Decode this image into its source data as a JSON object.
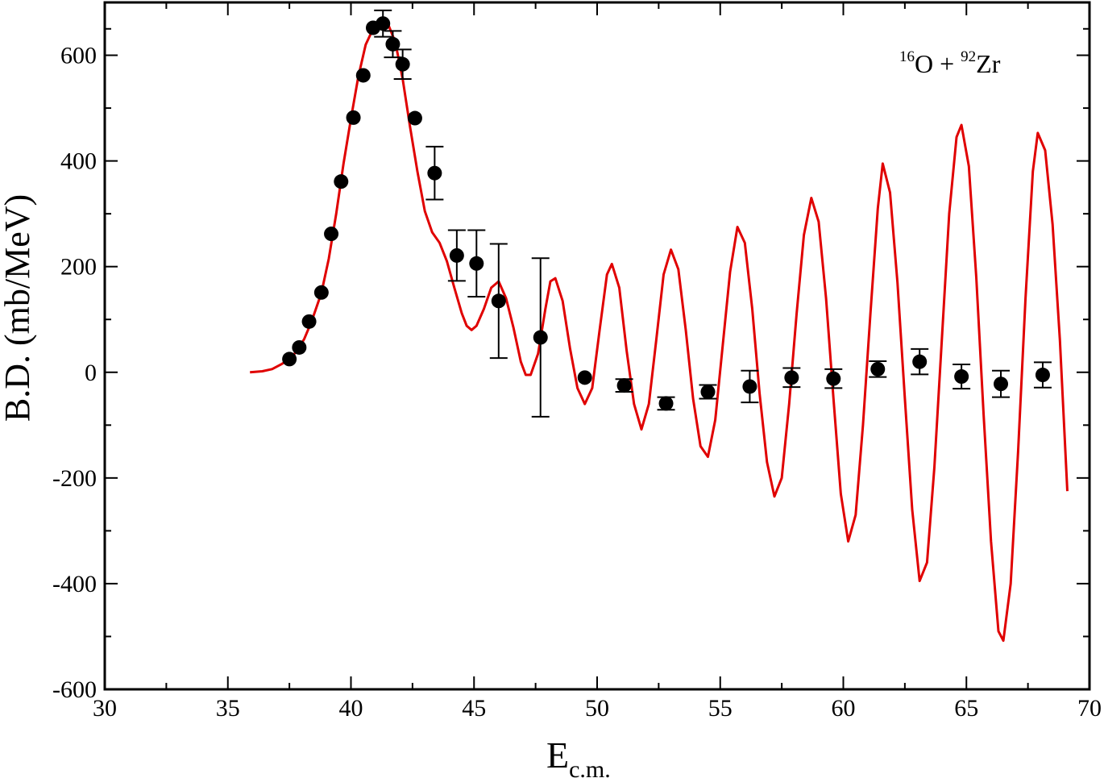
{
  "chart_data": {
    "type": "scatter",
    "title": "",
    "xlabel": "E",
    "xlabel_subscript": "c.m.",
    "ylabel": "B.D. (mb/MeV)",
    "annotation": {
      "left_mass": "16",
      "left_symbol": "O + ",
      "right_mass": "92",
      "right_symbol": "Zr"
    },
    "xlim": [
      30,
      70
    ],
    "ylim": [
      -600,
      700
    ],
    "x_ticks": [
      30,
      35,
      40,
      45,
      50,
      55,
      60,
      65,
      70
    ],
    "x_tick_labels": [
      "30",
      "35",
      "40",
      "45",
      "50",
      "55",
      "60",
      "65",
      "70"
    ],
    "y_ticks": [
      -600,
      -400,
      -200,
      0,
      200,
      400,
      600
    ],
    "y_tick_labels": [
      "-600",
      "-400",
      "-200",
      "0",
      "200",
      "400",
      "600"
    ],
    "grid": false,
    "series": [
      {
        "kind": "points_with_errors",
        "color": "#000000",
        "points": [
          {
            "x": 37.5,
            "y": 25,
            "err": 0
          },
          {
            "x": 37.9,
            "y": 47,
            "err": 0
          },
          {
            "x": 38.3,
            "y": 96,
            "err": 0
          },
          {
            "x": 38.8,
            "y": 151,
            "err": 0
          },
          {
            "x": 39.2,
            "y": 262,
            "err": 0
          },
          {
            "x": 39.6,
            "y": 361,
            "err": 0
          },
          {
            "x": 40.1,
            "y": 482,
            "err": 0
          },
          {
            "x": 40.5,
            "y": 562,
            "err": 0
          },
          {
            "x": 40.9,
            "y": 652,
            "err": 0
          },
          {
            "x": 41.3,
            "y": 660,
            "err": 25
          },
          {
            "x": 41.7,
            "y": 621,
            "err": 25
          },
          {
            "x": 42.1,
            "y": 583,
            "err": 28
          },
          {
            "x": 42.6,
            "y": 481,
            "err": 0
          },
          {
            "x": 43.4,
            "y": 377,
            "err": 50
          },
          {
            "x": 44.3,
            "y": 221,
            "err": 48
          },
          {
            "x": 45.1,
            "y": 206,
            "err": 63
          },
          {
            "x": 46.0,
            "y": 135,
            "err": 108
          },
          {
            "x": 47.7,
            "y": 66,
            "err": 150
          },
          {
            "x": 49.5,
            "y": -10,
            "err": 0
          },
          {
            "x": 51.1,
            "y": -25,
            "err": 12
          },
          {
            "x": 52.8,
            "y": -59,
            "err": 12
          },
          {
            "x": 54.5,
            "y": -37,
            "err": 13
          },
          {
            "x": 56.2,
            "y": -27,
            "err": 30
          },
          {
            "x": 57.9,
            "y": -10,
            "err": 18
          },
          {
            "x": 59.6,
            "y": -12,
            "err": 18
          },
          {
            "x": 61.4,
            "y": 6,
            "err": 15
          },
          {
            "x": 63.1,
            "y": 20,
            "err": 24
          },
          {
            "x": 64.8,
            "y": -8,
            "err": 23
          },
          {
            "x": 66.4,
            "y": -22,
            "err": 25
          },
          {
            "x": 68.1,
            "y": -5,
            "err": 24
          }
        ]
      },
      {
        "kind": "line",
        "color": "#e00000",
        "points": [
          [
            35.9,
            0
          ],
          [
            36.4,
            2
          ],
          [
            36.8,
            6
          ],
          [
            37.2,
            16
          ],
          [
            37.5,
            25
          ],
          [
            37.8,
            40
          ],
          [
            38.1,
            63
          ],
          [
            38.4,
            96
          ],
          [
            38.8,
            150
          ],
          [
            39.1,
            215
          ],
          [
            39.4,
            300
          ],
          [
            39.7,
            395
          ],
          [
            40.0,
            480
          ],
          [
            40.3,
            560
          ],
          [
            40.6,
            620
          ],
          [
            40.9,
            650
          ],
          [
            41.2,
            662
          ],
          [
            41.5,
            660
          ],
          [
            41.8,
            625
          ],
          [
            42.1,
            555
          ],
          [
            42.4,
            465
          ],
          [
            42.7,
            380
          ],
          [
            43.0,
            305
          ],
          [
            43.3,
            265
          ],
          [
            43.6,
            245
          ],
          [
            43.9,
            210
          ],
          [
            44.2,
            160
          ],
          [
            44.5,
            112
          ],
          [
            44.7,
            88
          ],
          [
            44.9,
            80
          ],
          [
            45.1,
            88
          ],
          [
            45.4,
            120
          ],
          [
            45.7,
            160
          ],
          [
            46.0,
            172
          ],
          [
            46.3,
            140
          ],
          [
            46.6,
            85
          ],
          [
            46.9,
            20
          ],
          [
            47.1,
            -5
          ],
          [
            47.3,
            -5
          ],
          [
            47.6,
            35
          ],
          [
            47.9,
            120
          ],
          [
            48.1,
            172
          ],
          [
            48.3,
            178
          ],
          [
            48.6,
            135
          ],
          [
            48.9,
            45
          ],
          [
            49.2,
            -30
          ],
          [
            49.5,
            -60
          ],
          [
            49.8,
            -30
          ],
          [
            50.1,
            80
          ],
          [
            50.4,
            185
          ],
          [
            50.6,
            205
          ],
          [
            50.9,
            160
          ],
          [
            51.2,
            40
          ],
          [
            51.5,
            -60
          ],
          [
            51.8,
            -108
          ],
          [
            52.1,
            -60
          ],
          [
            52.4,
            60
          ],
          [
            52.7,
            185
          ],
          [
            53.0,
            232
          ],
          [
            53.3,
            195
          ],
          [
            53.6,
            80
          ],
          [
            53.9,
            -50
          ],
          [
            54.2,
            -140
          ],
          [
            54.5,
            -160
          ],
          [
            54.8,
            -90
          ],
          [
            55.1,
            50
          ],
          [
            55.4,
            190
          ],
          [
            55.7,
            275
          ],
          [
            56.0,
            245
          ],
          [
            56.3,
            120
          ],
          [
            56.6,
            -40
          ],
          [
            56.9,
            -170
          ],
          [
            57.2,
            -235
          ],
          [
            57.5,
            -200
          ],
          [
            57.8,
            -60
          ],
          [
            58.1,
            110
          ],
          [
            58.4,
            260
          ],
          [
            58.7,
            330
          ],
          [
            59.0,
            285
          ],
          [
            59.3,
            140
          ],
          [
            59.6,
            -50
          ],
          [
            59.9,
            -230
          ],
          [
            60.2,
            -320
          ],
          [
            60.5,
            -270
          ],
          [
            60.8,
            -100
          ],
          [
            61.1,
            110
          ],
          [
            61.4,
            310
          ],
          [
            61.6,
            395
          ],
          [
            61.9,
            340
          ],
          [
            62.2,
            170
          ],
          [
            62.5,
            -50
          ],
          [
            62.8,
            -260
          ],
          [
            63.1,
            -395
          ],
          [
            63.4,
            -360
          ],
          [
            63.7,
            -180
          ],
          [
            64.0,
            60
          ],
          [
            64.3,
            300
          ],
          [
            64.6,
            445
          ],
          [
            64.8,
            468
          ],
          [
            65.1,
            390
          ],
          [
            65.4,
            180
          ],
          [
            65.7,
            -80
          ],
          [
            66.0,
            -320
          ],
          [
            66.3,
            -490
          ],
          [
            66.5,
            -508
          ],
          [
            66.8,
            -400
          ],
          [
            67.1,
            -150
          ],
          [
            67.4,
            140
          ],
          [
            67.7,
            380
          ],
          [
            67.9,
            453
          ],
          [
            68.2,
            420
          ],
          [
            68.5,
            280
          ],
          [
            68.8,
            60
          ],
          [
            69.1,
            -225
          ]
        ]
      }
    ]
  }
}
